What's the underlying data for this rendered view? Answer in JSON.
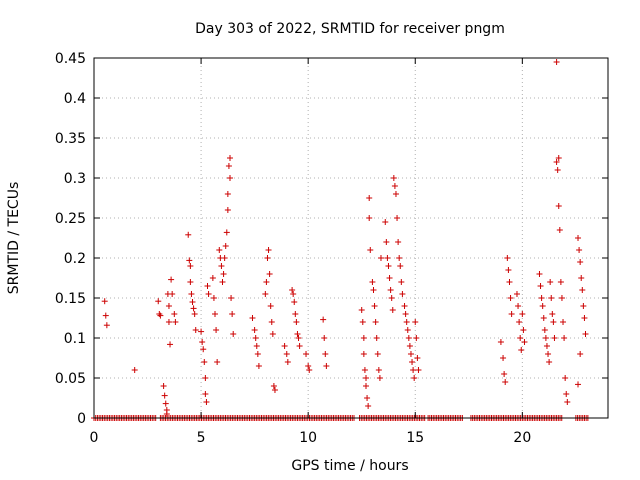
{
  "chart_data": {
    "type": "scatter",
    "title": "Day 303 of 2022, SRMTID for receiver pngm",
    "xlabel": "GPS time / hours",
    "ylabel": "SRMTID / TECUs",
    "xlim": [
      0,
      24
    ],
    "ylim": [
      0,
      0.45
    ],
    "xticks": [
      0,
      5,
      10,
      15,
      20
    ],
    "yticks": [
      0,
      0.05,
      0.1,
      0.15,
      0.2,
      0.25,
      0.3,
      0.35,
      0.4,
      0.45
    ],
    "grid": true,
    "marker": "+",
    "color": "#cc0000",
    "series": [
      {
        "name": "SRMTID",
        "points": [
          [
            0.5,
            0.146
          ],
          [
            0.55,
            0.128
          ],
          [
            0.6,
            0.116
          ],
          [
            1.9,
            0.06
          ],
          [
            3.0,
            0.146
          ],
          [
            3.05,
            0.13
          ],
          [
            3.1,
            0.128
          ],
          [
            3.25,
            0.04
          ],
          [
            3.3,
            0.028
          ],
          [
            3.35,
            0.018
          ],
          [
            3.4,
            0.01
          ],
          [
            3.4,
            0.005
          ],
          [
            3.45,
            0.155
          ],
          [
            3.5,
            0.14
          ],
          [
            3.5,
            0.12
          ],
          [
            3.55,
            0.092
          ],
          [
            3.6,
            0.173
          ],
          [
            3.65,
            0.155
          ],
          [
            3.75,
            0.13
          ],
          [
            3.8,
            0.12
          ],
          [
            4.4,
            0.229
          ],
          [
            4.45,
            0.197
          ],
          [
            4.5,
            0.19
          ],
          [
            4.5,
            0.17
          ],
          [
            4.55,
            0.155
          ],
          [
            4.6,
            0.145
          ],
          [
            4.65,
            0.137
          ],
          [
            4.7,
            0.13
          ],
          [
            4.75,
            0.11
          ],
          [
            5.0,
            0.108
          ],
          [
            5.05,
            0.095
          ],
          [
            5.1,
            0.086
          ],
          [
            5.15,
            0.07
          ],
          [
            5.2,
            0.05
          ],
          [
            5.2,
            0.03
          ],
          [
            5.25,
            0.02
          ],
          [
            5.3,
            0.165
          ],
          [
            5.35,
            0.155
          ],
          [
            5.55,
            0.175
          ],
          [
            5.6,
            0.15
          ],
          [
            5.65,
            0.13
          ],
          [
            5.7,
            0.11
          ],
          [
            5.75,
            0.07
          ],
          [
            5.85,
            0.21
          ],
          [
            5.9,
            0.2
          ],
          [
            5.95,
            0.19
          ],
          [
            6.0,
            0.17
          ],
          [
            6.05,
            0.18
          ],
          [
            6.1,
            0.2
          ],
          [
            6.15,
            0.215
          ],
          [
            6.2,
            0.232
          ],
          [
            6.25,
            0.26
          ],
          [
            6.25,
            0.28
          ],
          [
            6.3,
            0.315
          ],
          [
            6.35,
            0.325
          ],
          [
            6.35,
            0.3
          ],
          [
            6.4,
            0.15
          ],
          [
            6.45,
            0.13
          ],
          [
            6.5,
            0.105
          ],
          [
            7.4,
            0.125
          ],
          [
            7.5,
            0.11
          ],
          [
            7.55,
            0.1
          ],
          [
            7.6,
            0.09
          ],
          [
            7.65,
            0.08
          ],
          [
            7.7,
            0.065
          ],
          [
            8.0,
            0.155
          ],
          [
            8.05,
            0.17
          ],
          [
            8.1,
            0.2
          ],
          [
            8.15,
            0.21
          ],
          [
            8.2,
            0.18
          ],
          [
            8.25,
            0.14
          ],
          [
            8.3,
            0.12
          ],
          [
            8.35,
            0.105
          ],
          [
            8.4,
            0.04
          ],
          [
            8.45,
            0.035
          ],
          [
            8.9,
            0.09
          ],
          [
            9.0,
            0.08
          ],
          [
            9.05,
            0.07
          ],
          [
            9.25,
            0.16
          ],
          [
            9.3,
            0.155
          ],
          [
            9.35,
            0.145
          ],
          [
            9.4,
            0.13
          ],
          [
            9.45,
            0.12
          ],
          [
            9.5,
            0.105
          ],
          [
            9.55,
            0.1
          ],
          [
            9.6,
            0.09
          ],
          [
            9.9,
            0.08
          ],
          [
            10.0,
            0.065
          ],
          [
            10.05,
            0.06
          ],
          [
            10.7,
            0.123
          ],
          [
            10.75,
            0.1
          ],
          [
            10.8,
            0.08
          ],
          [
            10.85,
            0.065
          ],
          [
            12.5,
            0.135
          ],
          [
            12.55,
            0.12
          ],
          [
            12.6,
            0.1
          ],
          [
            12.6,
            0.08
          ],
          [
            12.65,
            0.06
          ],
          [
            12.7,
            0.05
          ],
          [
            12.7,
            0.04
          ],
          [
            12.75,
            0.025
          ],
          [
            12.8,
            0.015
          ],
          [
            12.85,
            0.275
          ],
          [
            12.85,
            0.25
          ],
          [
            12.9,
            0.21
          ],
          [
            13.0,
            0.17
          ],
          [
            13.05,
            0.16
          ],
          [
            13.1,
            0.14
          ],
          [
            13.15,
            0.12
          ],
          [
            13.2,
            0.1
          ],
          [
            13.25,
            0.08
          ],
          [
            13.3,
            0.06
          ],
          [
            13.35,
            0.05
          ],
          [
            13.4,
            0.2
          ],
          [
            13.6,
            0.245
          ],
          [
            13.65,
            0.22
          ],
          [
            13.7,
            0.2
          ],
          [
            13.75,
            0.19
          ],
          [
            13.8,
            0.175
          ],
          [
            13.85,
            0.16
          ],
          [
            13.9,
            0.15
          ],
          [
            13.95,
            0.135
          ],
          [
            14.0,
            0.3
          ],
          [
            14.05,
            0.29
          ],
          [
            14.1,
            0.28
          ],
          [
            14.15,
            0.25
          ],
          [
            14.2,
            0.22
          ],
          [
            14.25,
            0.2
          ],
          [
            14.3,
            0.19
          ],
          [
            14.35,
            0.17
          ],
          [
            14.4,
            0.155
          ],
          [
            14.5,
            0.14
          ],
          [
            14.55,
            0.13
          ],
          [
            14.6,
            0.12
          ],
          [
            14.65,
            0.11
          ],
          [
            14.7,
            0.1
          ],
          [
            14.75,
            0.09
          ],
          [
            14.8,
            0.08
          ],
          [
            14.85,
            0.07
          ],
          [
            14.9,
            0.06
          ],
          [
            14.95,
            0.05
          ],
          [
            15.0,
            0.12
          ],
          [
            15.05,
            0.1
          ],
          [
            15.1,
            0.075
          ],
          [
            15.15,
            0.06
          ],
          [
            19.0,
            0.095
          ],
          [
            19.1,
            0.075
          ],
          [
            19.15,
            0.055
          ],
          [
            19.2,
            0.045
          ],
          [
            19.3,
            0.2
          ],
          [
            19.35,
            0.185
          ],
          [
            19.4,
            0.17
          ],
          [
            19.45,
            0.15
          ],
          [
            19.5,
            0.13
          ],
          [
            19.75,
            0.155
          ],
          [
            19.8,
            0.14
          ],
          [
            19.85,
            0.12
          ],
          [
            19.9,
            0.1
          ],
          [
            19.95,
            0.085
          ],
          [
            20.0,
            0.13
          ],
          [
            20.05,
            0.11
          ],
          [
            20.1,
            0.095
          ],
          [
            20.8,
            0.18
          ],
          [
            20.85,
            0.165
          ],
          [
            20.9,
            0.15
          ],
          [
            20.95,
            0.14
          ],
          [
            21.0,
            0.125
          ],
          [
            21.05,
            0.11
          ],
          [
            21.1,
            0.1
          ],
          [
            21.15,
            0.09
          ],
          [
            21.2,
            0.08
          ],
          [
            21.25,
            0.07
          ],
          [
            21.3,
            0.17
          ],
          [
            21.35,
            0.15
          ],
          [
            21.4,
            0.13
          ],
          [
            21.45,
            0.12
          ],
          [
            21.5,
            0.1
          ],
          [
            21.6,
            0.445
          ],
          [
            21.6,
            0.32
          ],
          [
            21.65,
            0.31
          ],
          [
            21.7,
            0.325
          ],
          [
            21.7,
            0.265
          ],
          [
            21.75,
            0.235
          ],
          [
            21.8,
            0.17
          ],
          [
            21.85,
            0.15
          ],
          [
            21.9,
            0.12
          ],
          [
            21.95,
            0.1
          ],
          [
            22.0,
            0.05
          ],
          [
            22.05,
            0.03
          ],
          [
            22.1,
            0.02
          ],
          [
            22.6,
            0.225
          ],
          [
            22.65,
            0.21
          ],
          [
            22.7,
            0.195
          ],
          [
            22.75,
            0.175
          ],
          [
            22.8,
            0.16
          ],
          [
            22.85,
            0.14
          ],
          [
            22.9,
            0.125
          ],
          [
            22.95,
            0.105
          ],
          [
            22.7,
            0.08
          ],
          [
            22.6,
            0.042
          ]
        ],
        "zero_ranges": [
          [
            0,
            2.9
          ],
          [
            3.1,
            12.2
          ],
          [
            12.4,
            15.5
          ],
          [
            15.6,
            17.2
          ],
          [
            17.6,
            21.9
          ],
          [
            22.5,
            23.1
          ]
        ]
      }
    ]
  }
}
